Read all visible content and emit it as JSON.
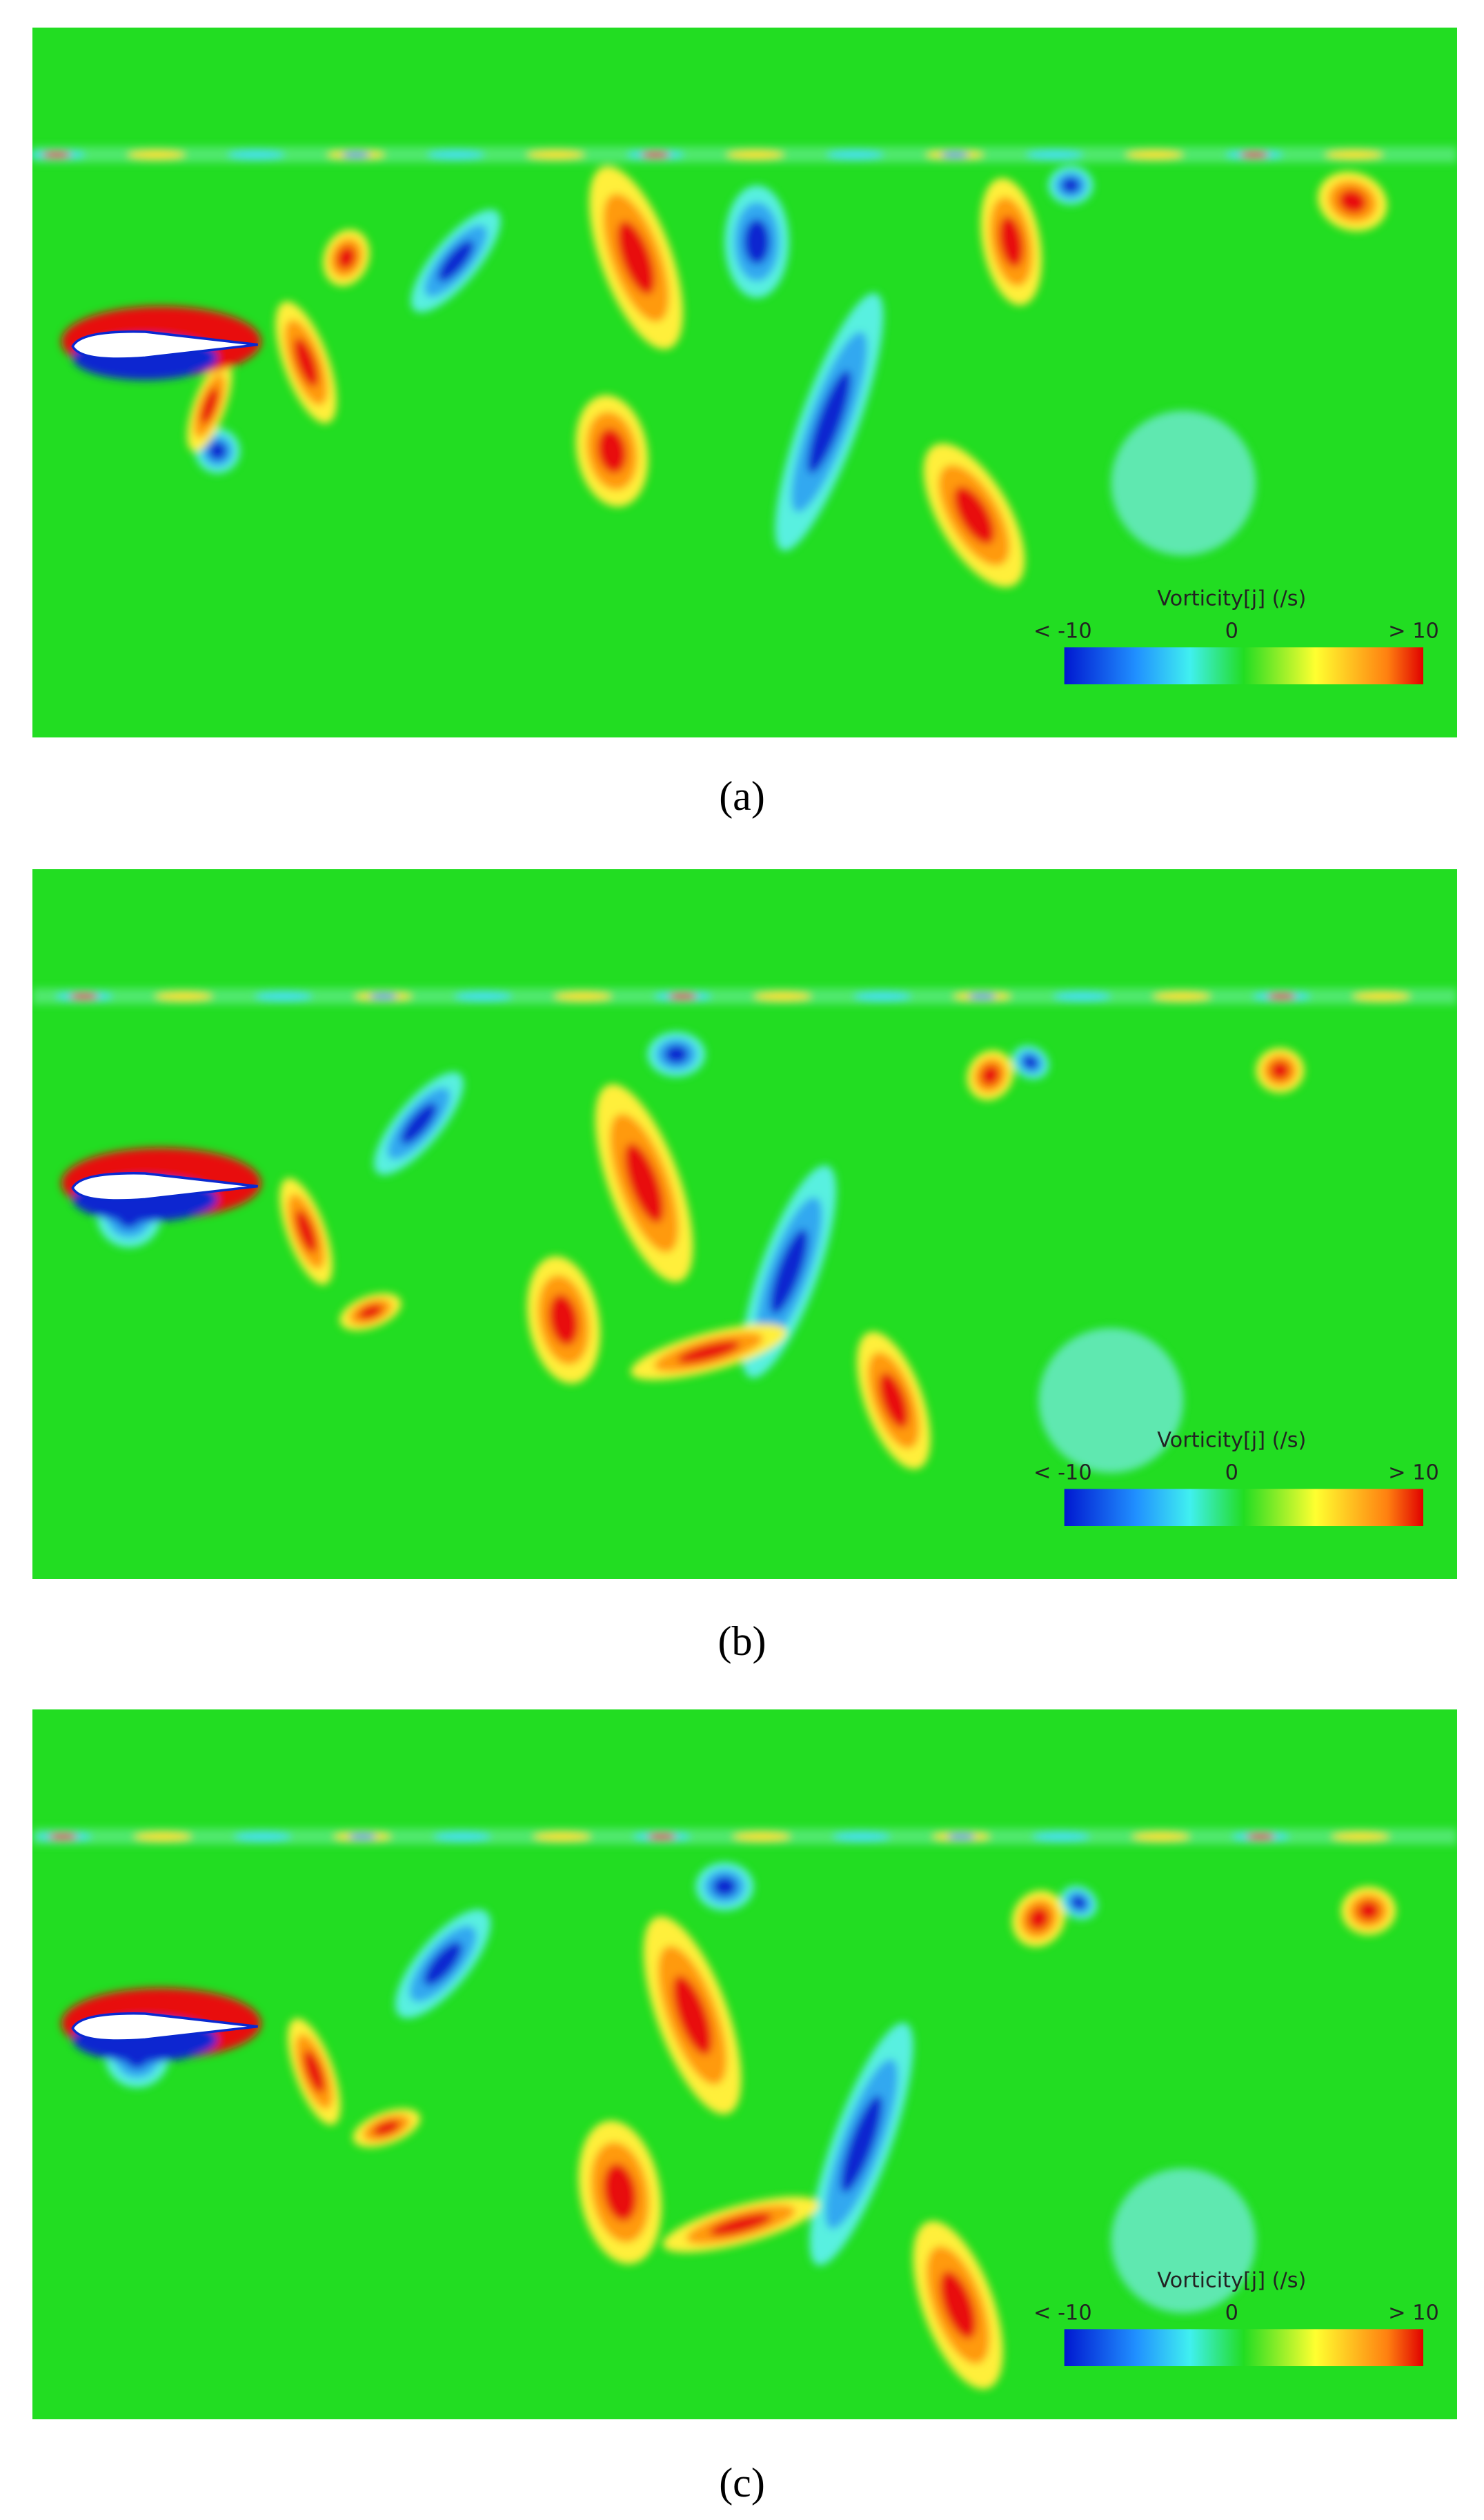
{
  "panels": [
    {
      "caption": "(a)",
      "legend": {
        "title": "Vorticity[j] (/s)",
        "min_label": "< -10",
        "mid_label": "0",
        "max_label": "> 10"
      }
    },
    {
      "caption": "(b)",
      "legend": {
        "title": "Vorticity[j] (/s)",
        "min_label": "< -10",
        "mid_label": "0",
        "max_label": "> 10"
      }
    },
    {
      "caption": "(c)",
      "legend": {
        "title": "Vorticity[j] (/s)",
        "min_label": "< -10",
        "mid_label": "0",
        "max_label": "> 10"
      }
    }
  ]
}
